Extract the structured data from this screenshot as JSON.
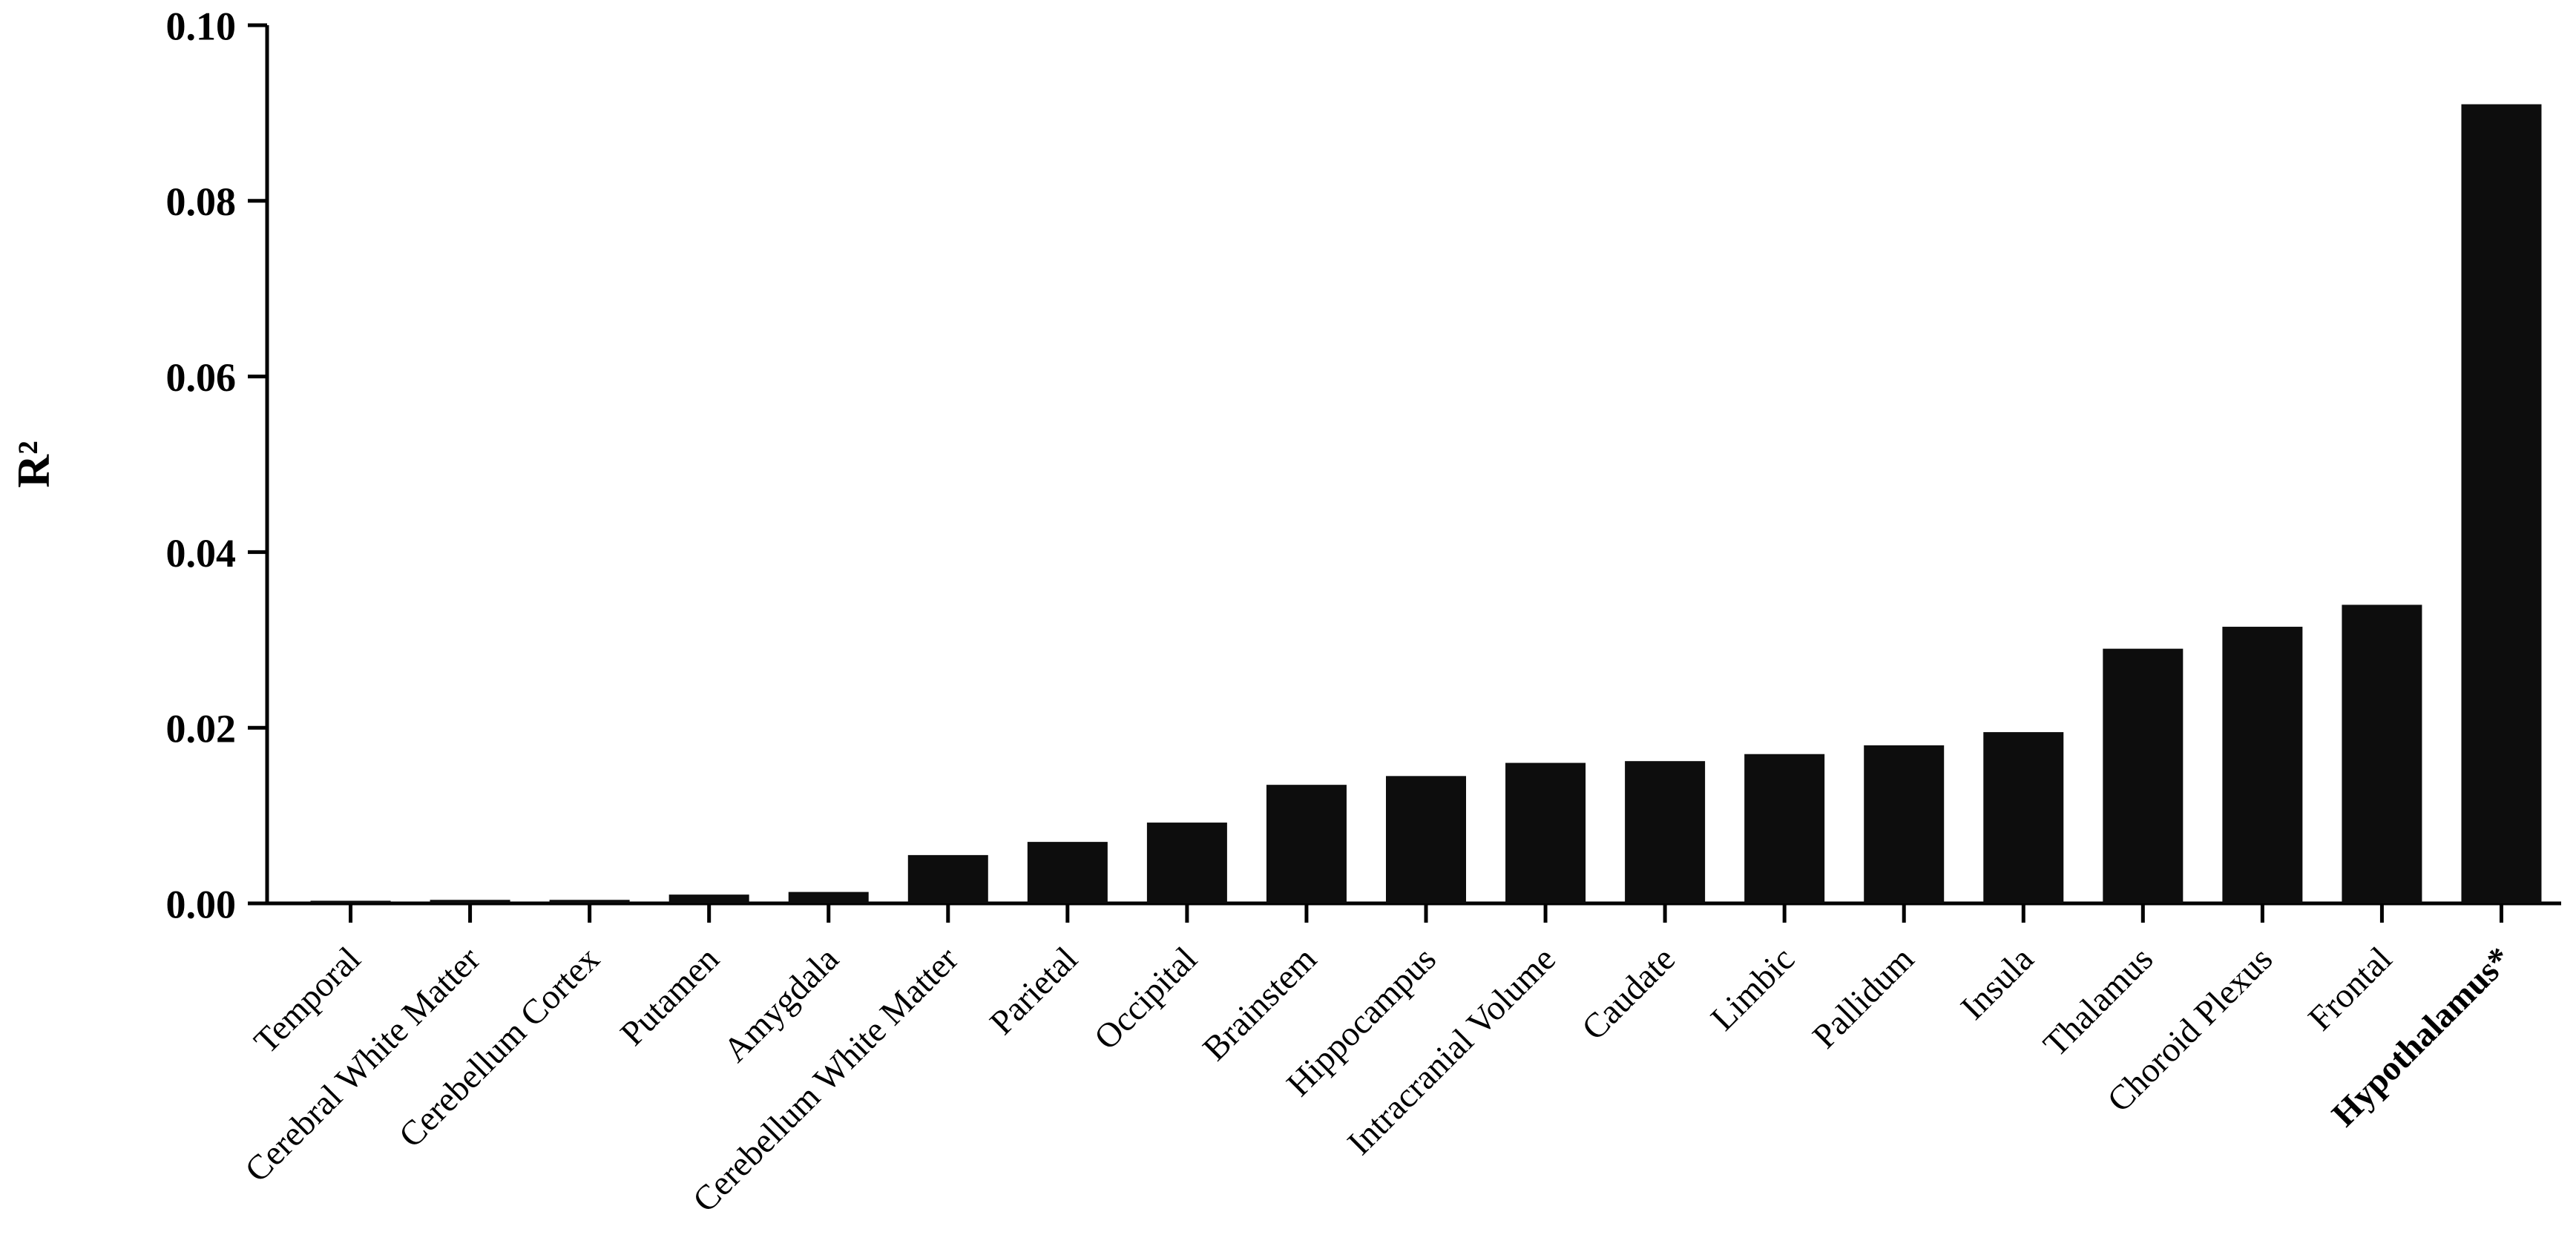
{
  "chart_data": {
    "type": "bar",
    "title": "",
    "xlabel": "",
    "ylabel": "R²",
    "ylim": [
      0,
      0.1
    ],
    "ytick_values": [
      0.0,
      0.02,
      0.04,
      0.06,
      0.08,
      0.1
    ],
    "ytick_labels": [
      "0.00",
      "0.02",
      "0.04",
      "0.06",
      "0.08",
      "0.10"
    ],
    "grid": false,
    "legend": "none",
    "bar_color": "#0d0d0d",
    "categories": [
      "Temporal",
      "Cerebral White Matter",
      "Cerebellum Cortex",
      "Putamen",
      "Amygdala",
      "Cerebellum White Matter",
      "Parietal",
      "Occipital",
      "Brainstem",
      "Hippocampus",
      "Intracranial Volume",
      "Caudate",
      "Limbic",
      "Pallidum",
      "Insula",
      "Thalamus",
      "Choroid Plexus",
      "Frontal",
      "Hypothalamus*"
    ],
    "values": [
      0.0003,
      0.0004,
      0.0004,
      0.001,
      0.0013,
      0.0055,
      0.007,
      0.0092,
      0.0135,
      0.0145,
      0.016,
      0.0162,
      0.017,
      0.018,
      0.0195,
      0.029,
      0.0315,
      0.034,
      0.091
    ],
    "bold_categories": [
      "Hypothalamus*"
    ]
  }
}
